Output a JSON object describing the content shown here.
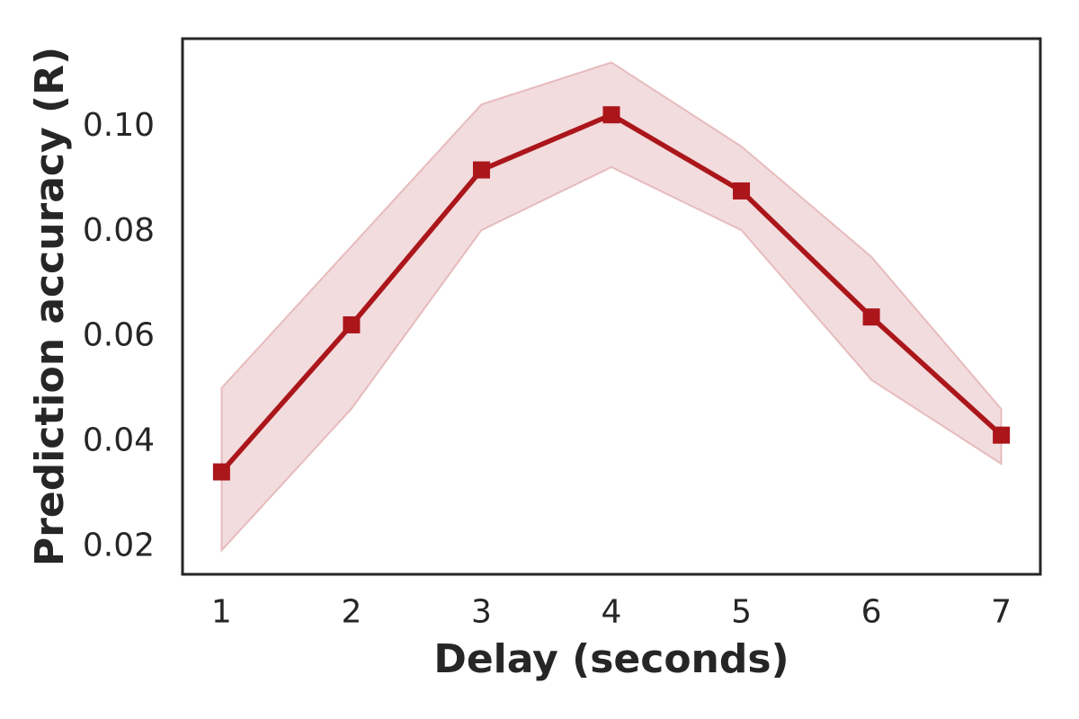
{
  "chart_data": {
    "type": "line",
    "title": "",
    "xlabel": "Delay (seconds)",
    "ylabel": "Prediction accuracy (R)",
    "x": [
      1,
      2,
      3,
      4,
      5,
      6,
      7
    ],
    "series": [
      {
        "name": "prediction-accuracy",
        "values": [
          0.034,
          0.062,
          0.0915,
          0.102,
          0.0875,
          0.0635,
          0.041
        ],
        "band_upper": [
          0.05,
          0.077,
          0.104,
          0.112,
          0.096,
          0.075,
          0.046
        ],
        "band_lower": [
          0.019,
          0.046,
          0.08,
          0.092,
          0.08,
          0.0515,
          0.0355
        ]
      }
    ],
    "xticks": [
      "1",
      "2",
      "3",
      "4",
      "5",
      "6",
      "7"
    ],
    "yticks": [
      0.02,
      0.04,
      0.06,
      0.08,
      0.1
    ],
    "ytick_labels": [
      "0.02",
      "0.04",
      "0.06",
      "0.08",
      "0.10"
    ],
    "xlim": [
      0.7,
      7.3
    ],
    "ylim": [
      0.0145,
      0.1165
    ],
    "grid": false,
    "legend": null,
    "line_color": "#AB161B",
    "band_color": "#AB161B",
    "band_opacity": 0.15,
    "band_edge_opacity": 0.22,
    "spine_color": "#262626",
    "marker": "square"
  }
}
